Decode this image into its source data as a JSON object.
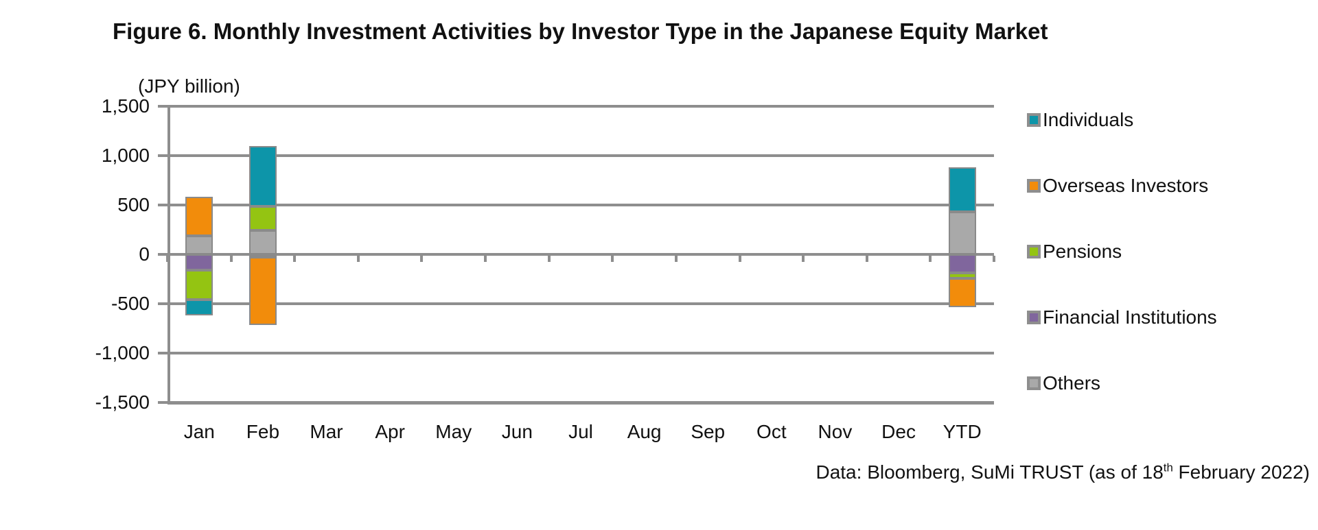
{
  "chart_data": {
    "type": "bar",
    "stacked": true,
    "title": "Figure 6. Monthly Investment Activities by Investor Type in the Japanese Equity Market",
    "unit_label": "(JPY billion)",
    "xlabel": "",
    "ylabel": "JPY billion",
    "categories": [
      "Jan",
      "Feb",
      "Mar",
      "Apr",
      "May",
      "Jun",
      "Jul",
      "Aug",
      "Sep",
      "Oct",
      "Nov",
      "Dec",
      "YTD"
    ],
    "ylim": [
      -1500,
      1500
    ],
    "ytick_step": 500,
    "ytick_labels": [
      "1,500",
      "1,000",
      "500",
      "0",
      "-500",
      "-1,000",
      "-1,500"
    ],
    "grid": true,
    "legend_position": "right",
    "series": [
      {
        "name": "Individuals",
        "color": "#0D95A9",
        "values": [
          -165,
          615,
          0,
          0,
          0,
          0,
          0,
          0,
          0,
          0,
          0,
          0,
          450
        ]
      },
      {
        "name": "Overseas Investors",
        "color": "#F28C0B",
        "values": [
          395,
          -685,
          0,
          0,
          0,
          0,
          0,
          0,
          0,
          0,
          0,
          0,
          -290
        ]
      },
      {
        "name": "Pensions",
        "color": "#94C412",
        "values": [
          -295,
          240,
          0,
          0,
          0,
          0,
          0,
          0,
          0,
          0,
          0,
          0,
          -55
        ]
      },
      {
        "name": "Financial Institutions",
        "color": "#80669D",
        "values": [
          -160,
          -30,
          0,
          0,
          0,
          0,
          0,
          0,
          0,
          0,
          0,
          0,
          -190
        ]
      },
      {
        "name": "Others",
        "color": "#A9A9A9",
        "values": [
          185,
          245,
          0,
          0,
          0,
          0,
          0,
          0,
          0,
          0,
          0,
          0,
          430
        ]
      }
    ]
  },
  "footer": {
    "prefix": "Data: Bloomberg, SuMi TRUST (as of 18",
    "superscript": "th",
    "suffix": " February 2022)"
  }
}
